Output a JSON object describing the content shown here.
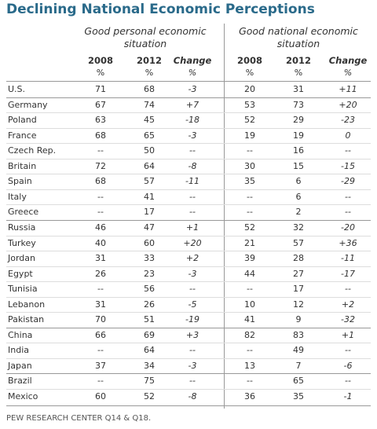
{
  "title": "Declining National Economic Perceptions",
  "table": {
    "group_headers": [
      "Good personal economic situation",
      "Good national economic situation"
    ],
    "columns": [
      {
        "label": "2008",
        "unit": "%"
      },
      {
        "label": "2012",
        "unit": "%"
      },
      {
        "label": "Change",
        "unit": "%"
      },
      {
        "label": "2008",
        "unit": "%"
      },
      {
        "label": "2012",
        "unit": "%"
      },
      {
        "label": "Change",
        "unit": "%"
      }
    ],
    "groups": [
      [
        [
          "U.S.",
          "71",
          "68",
          "-3",
          "20",
          "31",
          "+11"
        ]
      ],
      [
        [
          "Germany",
          "67",
          "74",
          "+7",
          "53",
          "73",
          "+20"
        ],
        [
          "Poland",
          "63",
          "45",
          "-18",
          "52",
          "29",
          "-23"
        ],
        [
          "France",
          "68",
          "65",
          "-3",
          "19",
          "19",
          "0"
        ],
        [
          "Czech Rep.",
          "--",
          "50",
          "--",
          "--",
          "16",
          "--"
        ],
        [
          "Britain",
          "72",
          "64",
          "-8",
          "30",
          "15",
          "-15"
        ],
        [
          "Spain",
          "68",
          "57",
          "-11",
          "35",
          "6",
          "-29"
        ],
        [
          "Italy",
          "--",
          "41",
          "--",
          "--",
          "6",
          "--"
        ],
        [
          "Greece",
          "--",
          "17",
          "--",
          "--",
          "2",
          "--"
        ]
      ],
      [
        [
          "Russia",
          "46",
          "47",
          "+1",
          "52",
          "32",
          "-20"
        ],
        [
          "Turkey",
          "40",
          "60",
          "+20",
          "21",
          "57",
          "+36"
        ],
        [
          "Jordan",
          "31",
          "33",
          "+2",
          "39",
          "28",
          "-11"
        ],
        [
          "Egypt",
          "26",
          "23",
          "-3",
          "44",
          "27",
          "-17"
        ],
        [
          "Tunisia",
          "--",
          "56",
          "--",
          "--",
          "17",
          "--"
        ],
        [
          "Lebanon",
          "31",
          "26",
          "-5",
          "10",
          "12",
          "+2"
        ],
        [
          "Pakistan",
          "70",
          "51",
          "-19",
          "41",
          "9",
          "-32"
        ]
      ],
      [
        [
          "China",
          "66",
          "69",
          "+3",
          "82",
          "83",
          "+1"
        ],
        [
          "India",
          "--",
          "64",
          "--",
          "--",
          "49",
          "--"
        ],
        [
          "Japan",
          "37",
          "34",
          "-3",
          "13",
          "7",
          "-6"
        ]
      ],
      [
        [
          "Brazil",
          "--",
          "75",
          "--",
          "--",
          "65",
          "--"
        ],
        [
          "Mexico",
          "60",
          "52",
          "-8",
          "36",
          "35",
          "-1"
        ]
      ]
    ]
  },
  "footer": "PEW RESEARCH CENTER Q14 & Q18."
}
